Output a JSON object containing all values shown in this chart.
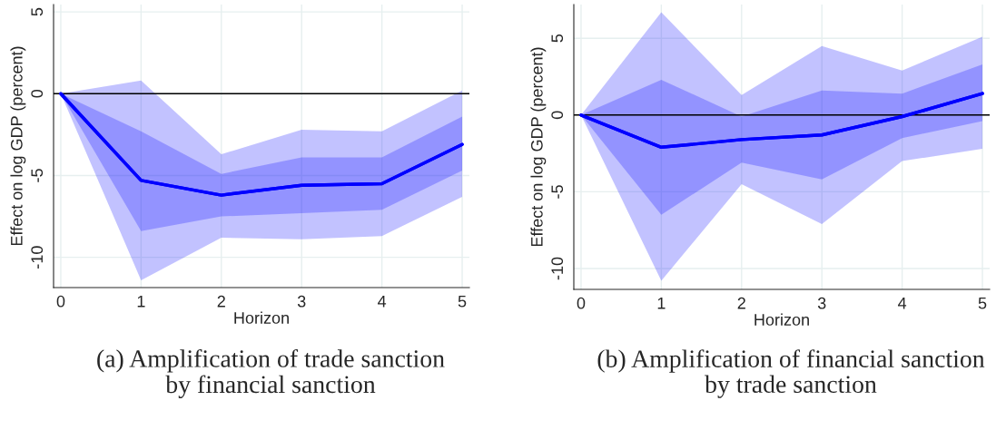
{
  "chart_data": [
    {
      "type": "line",
      "title": "(a) Amplification of trade sanction\nby financial sanction",
      "xlabel": "Horizon",
      "ylabel": "Effect on log GDP (percent)",
      "x": [
        0,
        1,
        2,
        3,
        4,
        5
      ],
      "series": [
        {
          "color": "#0000ff",
          "values": [
            0,
            -5.3,
            -6.2,
            -5.6,
            -5.5,
            -3.1
          ],
          "lower": [
            0,
            -11.4,
            -8.8,
            -8.9,
            -8.7,
            -6.3
          ],
          "upper": [
            0,
            0.8,
            -3.7,
            -2.2,
            -2.3,
            0.2
          ]
        },
        {
          "color": "#0000ff",
          "values": [
            0,
            -5.3,
            -6.2,
            -5.6,
            -5.5,
            -3.1
          ],
          "lower": [
            0,
            -8.4,
            -7.5,
            -7.3,
            -7.1,
            -4.7
          ],
          "upper": [
            0,
            -2.3,
            -4.9,
            -3.9,
            -3.9,
            -1.4
          ]
        }
      ],
      "xlim": [
        -0.09,
        5.09
      ],
      "xticks": [
        0,
        1,
        2,
        3,
        4,
        5
      ],
      "ylim": [
        -11.85,
        5.45
      ],
      "yticks": [
        -10,
        -5,
        0,
        5
      ],
      "ref_lines": [
        {
          "axis": "y",
          "value": 0,
          "color": "#000000"
        }
      ],
      "grid": true
    },
    {
      "type": "line",
      "title": "(b) Amplification of financial sanction\nby trade sanction",
      "xlabel": "Horizon",
      "ylabel": "Effect on log GDP (percent)",
      "x": [
        0,
        1,
        2,
        3,
        4,
        5
      ],
      "series": [
        {
          "color": "#0000ff",
          "values": [
            0,
            -2.1,
            -1.6,
            -1.3,
            -0.1,
            1.4
          ],
          "lower": [
            0,
            -10.8,
            -4.5,
            -7.1,
            -3.0,
            -2.2
          ],
          "upper": [
            0,
            6.7,
            1.3,
            4.5,
            2.9,
            5.1
          ]
        },
        {
          "color": "#0000ff",
          "values": [
            0,
            -2.1,
            -1.6,
            -1.3,
            -0.1,
            1.4
          ],
          "lower": [
            0,
            -6.5,
            -3.1,
            -4.2,
            -1.5,
            -0.4
          ],
          "upper": [
            0,
            2.3,
            -0.1,
            1.6,
            1.4,
            3.3
          ]
        }
      ],
      "xlim": [
        -0.09,
        5.09
      ],
      "xticks": [
        0,
        1,
        2,
        3,
        4,
        5
      ],
      "ylim": [
        -11.36,
        7.2
      ],
      "yticks": [
        -10,
        -5,
        0,
        5
      ],
      "ref_lines": [
        {
          "axis": "y",
          "value": 0,
          "color": "#000000"
        }
      ],
      "grid": true
    }
  ]
}
